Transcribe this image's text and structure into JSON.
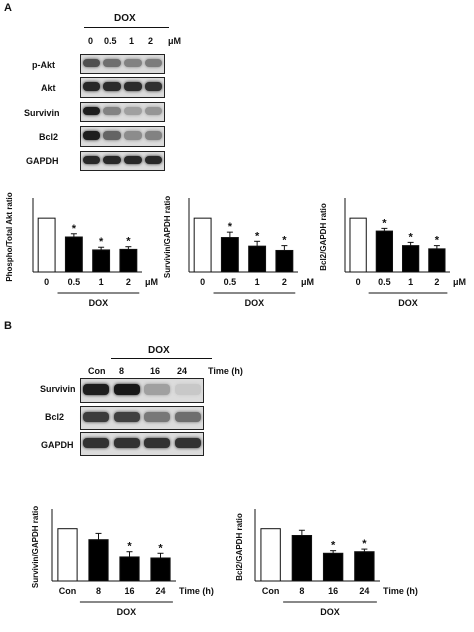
{
  "panel_a": {
    "label": "A",
    "treatment": "DOX",
    "unit": "μM",
    "lanes": [
      "0",
      "0.5",
      "1",
      "2"
    ],
    "rows": [
      "p-Akt",
      "Akt",
      "Survivin",
      "Bcl2",
      "GAPDH"
    ],
    "band_intensity": [
      [
        0.7,
        0.55,
        0.45,
        0.48
      ],
      [
        0.9,
        0.88,
        0.88,
        0.86
      ],
      [
        0.95,
        0.45,
        0.3,
        0.35
      ],
      [
        0.95,
        0.6,
        0.4,
        0.45
      ],
      [
        0.9,
        0.9,
        0.9,
        0.9
      ]
    ]
  },
  "panel_b": {
    "label": "B",
    "treatment": "DOX",
    "unit": "Time (h)",
    "lanes": [
      "Con",
      "8",
      "16",
      "24"
    ],
    "rows": [
      "Survivin",
      "Bcl2",
      "GAPDH"
    ],
    "band_intensity": [
      [
        0.95,
        0.98,
        0.3,
        0.1
      ],
      [
        0.8,
        0.78,
        0.5,
        0.55
      ],
      [
        0.85,
        0.85,
        0.85,
        0.85
      ]
    ]
  },
  "chart_data": [
    {
      "type": "bar",
      "ylabel": "Phospho/Total Akt ratio",
      "xlabel": "DOX",
      "unit": "μM",
      "categories": [
        "0",
        "0.5",
        "1",
        "2"
      ],
      "values": [
        1.0,
        0.65,
        0.41,
        0.42
      ],
      "errors": [
        0.0,
        0.06,
        0.05,
        0.05
      ],
      "significant": [
        false,
        true,
        true,
        true
      ],
      "ylim": [
        0,
        1.3
      ]
    },
    {
      "type": "bar",
      "ylabel": "Survivin/GAPDH ratio",
      "xlabel": "DOX",
      "unit": "μM",
      "categories": [
        "0",
        "0.5",
        "1",
        "2"
      ],
      "values": [
        1.0,
        0.64,
        0.48,
        0.4
      ],
      "errors": [
        0.0,
        0.1,
        0.09,
        0.09
      ],
      "significant": [
        false,
        true,
        true,
        true
      ],
      "ylim": [
        0,
        1.3
      ]
    },
    {
      "type": "bar",
      "ylabel": "Bcl2/GAPDH ratio",
      "xlabel": "DOX",
      "unit": "μM",
      "categories": [
        "0",
        "0.5",
        "1",
        "2"
      ],
      "values": [
        1.0,
        0.76,
        0.49,
        0.43
      ],
      "errors": [
        0.0,
        0.05,
        0.06,
        0.06
      ],
      "significant": [
        false,
        true,
        true,
        true
      ],
      "ylim": [
        0,
        1.3
      ]
    },
    {
      "type": "bar",
      "ylabel": "Survivin/GAPDH ratio",
      "xlabel": "DOX",
      "unit": "Time (h)",
      "categories": [
        "Con",
        "8",
        "16",
        "24"
      ],
      "values": [
        1.0,
        0.79,
        0.46,
        0.44
      ],
      "errors": [
        0.0,
        0.12,
        0.1,
        0.09
      ],
      "significant": [
        false,
        false,
        true,
        true
      ],
      "ylim": [
        0,
        1.3
      ]
    },
    {
      "type": "bar",
      "ylabel": "Bcl2/GAPDH ratio",
      "xlabel": "DOX",
      "unit": "Time (h)",
      "categories": [
        "Con",
        "8",
        "16",
        "24"
      ],
      "values": [
        1.0,
        0.87,
        0.53,
        0.56
      ],
      "errors": [
        0.0,
        0.1,
        0.05,
        0.05
      ],
      "significant": [
        false,
        false,
        true,
        true
      ],
      "ylim": [
        0,
        1.3
      ]
    }
  ],
  "star": "*",
  "colors": {
    "bar_fill": "#000000",
    "control_fill": "#ffffff",
    "stroke": "#111111"
  }
}
